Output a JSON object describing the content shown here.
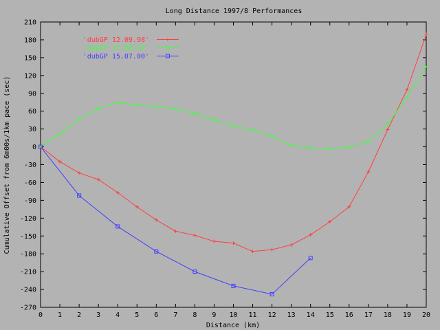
{
  "chart_data": {
    "type": "line",
    "title": "Long Distance 1997/8 Performances",
    "xlabel": "Distance (km)",
    "ylabel": "Cumulative Offset from 6m00s/1km pace (sec)",
    "xlim": [
      0,
      20
    ],
    "ylim": [
      -270,
      210
    ],
    "xticks": [
      0,
      1,
      2,
      3,
      4,
      5,
      6,
      7,
      8,
      9,
      10,
      11,
      12,
      13,
      14,
      15,
      16,
      17,
      18,
      19,
      20
    ],
    "yticks": [
      -270,
      -240,
      -210,
      -180,
      -150,
      -120,
      -90,
      -60,
      -30,
      0,
      30,
      60,
      90,
      120,
      150,
      180,
      210
    ],
    "grid": false,
    "legend_position": "top-left",
    "series": [
      {
        "name": "'dubGP 12.09.98'",
        "color": "#ff4040",
        "marker": "plus",
        "x": [
          0,
          1,
          2,
          3,
          4,
          5,
          6,
          7,
          8,
          9,
          10,
          11,
          12,
          13,
          14,
          15,
          16,
          17,
          18,
          19,
          20
        ],
        "y": [
          0,
          -25,
          -44,
          -55,
          -77,
          -101,
          -123,
          -142,
          -149,
          -159,
          -162,
          -176,
          -173,
          -165,
          -148,
          -126,
          -101,
          -42,
          29,
          96,
          189
        ]
      },
      {
        "name": "'dubGP 17.08.97'",
        "color": "#40ff40",
        "marker": "x",
        "x": [
          0,
          1,
          2,
          3,
          4,
          5,
          6,
          7,
          8,
          9,
          10,
          11,
          12,
          13,
          14,
          15,
          16,
          17,
          18,
          19,
          20
        ],
        "y": [
          0,
          22,
          47,
          64,
          74,
          71,
          67,
          64,
          56,
          45,
          35,
          28,
          18,
          3,
          -2,
          -3,
          -1,
          9,
          38,
          84,
          135
        ]
      },
      {
        "name": "'dubGP 15.07.00'",
        "color": "#4040ff",
        "marker": "square",
        "x": [
          0,
          2,
          4,
          6,
          8,
          10,
          12,
          14
        ],
        "y": [
          0,
          -82,
          -134,
          -176,
          -210,
          -234,
          -248,
          -187
        ]
      }
    ]
  }
}
